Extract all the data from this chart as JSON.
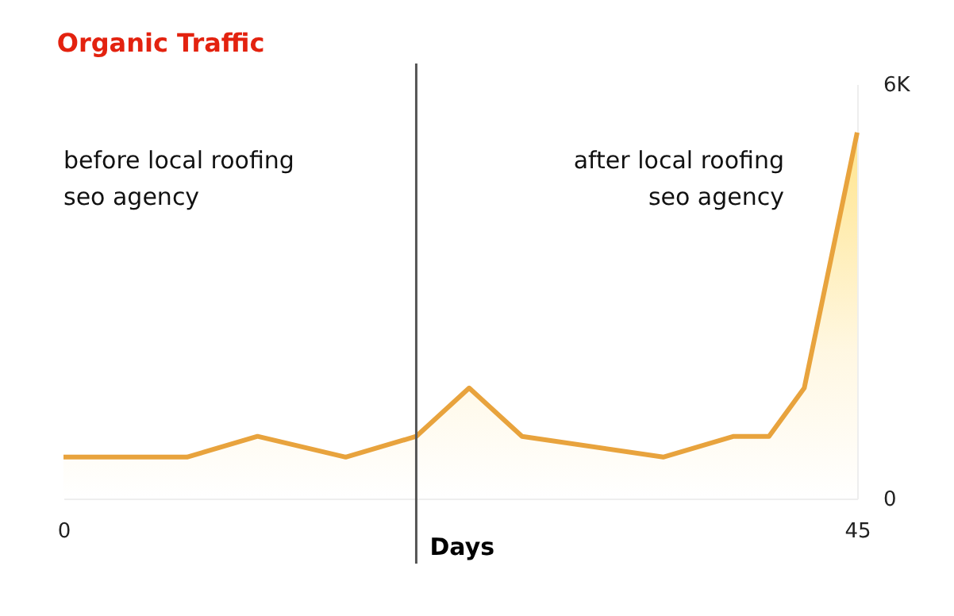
{
  "chart_data": {
    "type": "area",
    "title": "Organic Traffic",
    "xlabel": "Days",
    "annotations": [
      "before local roofing seo agency",
      "after local roofing seo agency"
    ],
    "x": [
      0,
      7,
      11,
      16,
      20,
      23,
      26,
      34,
      38,
      40,
      42,
      45
    ],
    "series": [
      {
        "color": "#e8a33d",
        "values": [
          600,
          600,
          900,
          600,
          900,
          1600,
          900,
          600,
          900,
          900,
          1600,
          5300
        ]
      }
    ],
    "xlim": [
      0,
      45
    ],
    "xticks": [
      0,
      45
    ],
    "ylim": [
      0,
      6000
    ],
    "yticks": [
      0,
      {
        "value": 6000,
        "label": "6K"
      }
    ],
    "ref_lines": [
      {
        "axis": "x",
        "value": 20,
        "color": "#555555"
      }
    ],
    "grid": false
  }
}
